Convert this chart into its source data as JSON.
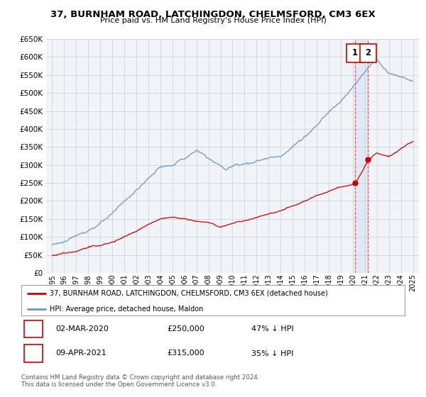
{
  "title": "37, BURNHAM ROAD, LATCHINGDON, CHELMSFORD, CM3 6EX",
  "subtitle": "Price paid vs. HM Land Registry's House Price Index (HPI)",
  "red_label": "37, BURNHAM ROAD, LATCHINGDON, CHELMSFORD, CM3 6EX (detached house)",
  "blue_label": "HPI: Average price, detached house, Maldon",
  "footnote": "Contains HM Land Registry data © Crown copyright and database right 2024.\nThis data is licensed under the Open Government Licence v3.0.",
  "transactions": [
    {
      "num": 1,
      "date": "02-MAR-2020",
      "price": "£250,000",
      "note": "47% ↓ HPI"
    },
    {
      "num": 2,
      "date": "09-APR-2021",
      "price": "£315,000",
      "note": "35% ↓ HPI"
    }
  ],
  "sale_points": [
    {
      "year": 2020.17,
      "value": 250000,
      "label": "1"
    },
    {
      "year": 2021.27,
      "value": 315000,
      "label": "2"
    }
  ],
  "ylim": [
    0,
    650000
  ],
  "yticks": [
    0,
    50000,
    100000,
    150000,
    200000,
    250000,
    300000,
    350000,
    400000,
    450000,
    500000,
    550000,
    600000,
    650000
  ],
  "red_color": "#cc0000",
  "blue_color": "#6699cc",
  "bg_color": "#f0f4f8",
  "grid_color": "#cccccc"
}
